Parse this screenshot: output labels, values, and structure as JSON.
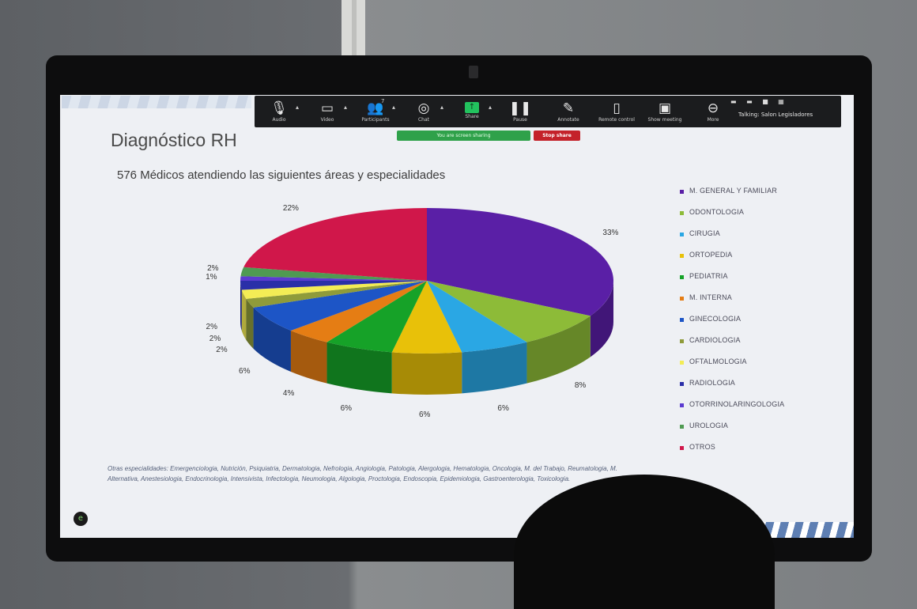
{
  "zoom_toolbar": {
    "buttons": [
      {
        "id": "audio",
        "label": "Audio",
        "icon": "microphone-icon"
      },
      {
        "id": "video",
        "label": "Video",
        "icon": "camera-icon"
      },
      {
        "id": "participants",
        "label": "Participants",
        "icon": "people-icon",
        "count": "7"
      },
      {
        "id": "chat",
        "label": "Chat",
        "icon": "chat-icon"
      },
      {
        "id": "share",
        "label": "Share",
        "icon": "share-screen-icon"
      },
      {
        "id": "pause",
        "label": "Pause",
        "icon": "pause-icon"
      },
      {
        "id": "annotate",
        "label": "Annotate",
        "icon": "pencil-icon"
      },
      {
        "id": "remote",
        "label": "Remote control",
        "icon": "mouse-icon"
      },
      {
        "id": "showmeeting",
        "label": "Show meeting",
        "icon": "window-icon"
      },
      {
        "id": "more",
        "label": "More",
        "icon": "more-icon"
      }
    ],
    "talking": "Talking: Salon Legisladores",
    "sharing_status": "You are screen sharing",
    "stop_share": "Stop share"
  },
  "slide": {
    "title": "Diagnóstico RH",
    "subtitle": "576 Médicos atendiendo las siguientes áreas y especialidades",
    "footnote": "Otras especialidades: Emergenciologia, Nutrición, Psiquiatria, Dermatologia, Nefrologia, Angiologia, Patologia, Alergologia, Hematologia, Oncologia, M. del Trabajo, Reumatologia, M. Alternativa, Anestesiologia, Endocrinologia, Intensivista, Infectologia, Neumologia, Algologia, Proctologia, Endoscopia, Epidemiologia, Gastroenterologia, Toxicologia."
  },
  "chart_data": {
    "type": "pie",
    "title": "",
    "categories": [
      "M. GENERAL Y FAMILIAR",
      "ODONTOLOGIA",
      "CIRUGIA",
      "ORTOPEDIA",
      "PEDIATRIA",
      "M. INTERNA",
      "GINECOLOGIA",
      "CARDIOLOGIA",
      "OFTALMOLOGIA",
      "RADIOLOGIA",
      "OTORRINOLARINGOLOGIA",
      "UROLOGIA",
      "OTROS"
    ],
    "values": [
      33,
      8,
      6,
      6,
      6,
      4,
      6,
      2,
      2,
      2,
      1,
      2,
      22
    ],
    "labels": [
      "33%",
      "8%",
      "6%",
      "6%",
      "6%",
      "4%",
      "6%",
      "2%",
      "2%",
      "2%",
      "1%",
      "2%",
      "22%"
    ],
    "colors": [
      "#5a1fa6",
      "#8dbb38",
      "#2aa7e4",
      "#e8c109",
      "#16a228",
      "#e57d14",
      "#1d55c6",
      "#8f9b3a",
      "#f3ec55",
      "#2a2fa8",
      "#5b3bd0",
      "#4f9a52",
      "#d0174a"
    ],
    "legend_position": "right",
    "three_d": true
  }
}
